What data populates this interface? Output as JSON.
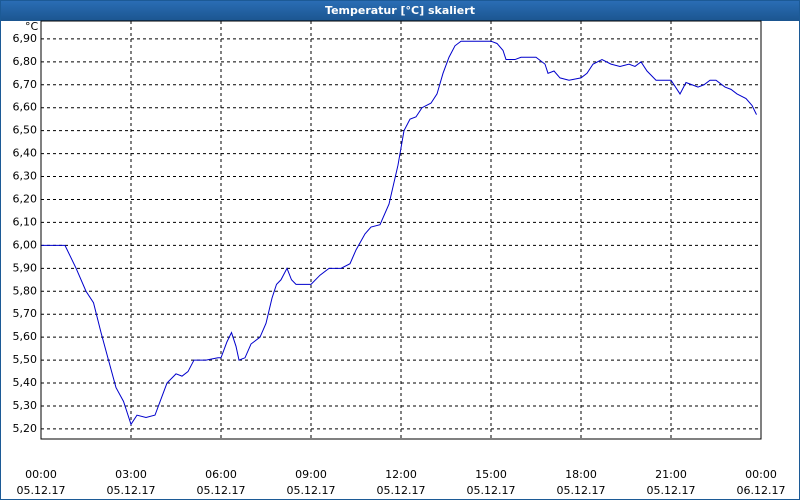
{
  "chart_data": {
    "type": "line",
    "title": "Temperatur [°C] skaliert",
    "y_label": "°C",
    "x": [
      0,
      0.5,
      0.8,
      1.17,
      1.5,
      1.75,
      2.0,
      2.25,
      2.5,
      2.75,
      2.9,
      3.0,
      3.2,
      3.5,
      3.8,
      4.0,
      4.2,
      4.5,
      4.7,
      4.9,
      5.1,
      5.5,
      5.9,
      6.0,
      6.2,
      6.35,
      6.5,
      6.6,
      6.8,
      7.0,
      7.3,
      7.5,
      7.7,
      7.85,
      8.0,
      8.2,
      8.35,
      8.5,
      9.0,
      9.3,
      9.6,
      10.0,
      10.3,
      10.5,
      10.8,
      11.0,
      11.3,
      11.6,
      11.9,
      12.1,
      12.3,
      12.5,
      12.7,
      13.0,
      13.2,
      13.4,
      13.6,
      13.8,
      14.0,
      14.5,
      15.0,
      15.2,
      15.4,
      15.5,
      15.8,
      16.0,
      16.5,
      16.8,
      16.9,
      17.1,
      17.3,
      17.6,
      18.0,
      18.2,
      18.4,
      18.7,
      19.0,
      19.3,
      19.6,
      19.8,
      20.0,
      20.2,
      20.5,
      21.0,
      21.1,
      21.3,
      21.5,
      21.7,
      21.9,
      22.1,
      22.3,
      22.5,
      22.8,
      23.0,
      23.2,
      23.5,
      23.7,
      23.85
    ],
    "series": [
      {
        "name": "Temperatur",
        "color": "#0000cc",
        "values": [
          6.0,
          6.0,
          6.0,
          5.9,
          5.8,
          5.75,
          5.62,
          5.5,
          5.38,
          5.32,
          5.26,
          5.22,
          5.26,
          5.25,
          5.26,
          5.33,
          5.4,
          5.44,
          5.43,
          5.45,
          5.5,
          5.5,
          5.51,
          5.51,
          5.58,
          5.62,
          5.56,
          5.5,
          5.51,
          5.57,
          5.6,
          5.66,
          5.77,
          5.83,
          5.85,
          5.9,
          5.85,
          5.83,
          5.83,
          5.87,
          5.9,
          5.9,
          5.92,
          5.98,
          6.05,
          6.08,
          6.09,
          6.18,
          6.35,
          6.5,
          6.55,
          6.56,
          6.6,
          6.62,
          6.66,
          6.75,
          6.82,
          6.87,
          6.89,
          6.89,
          6.89,
          6.88,
          6.85,
          6.81,
          6.81,
          6.82,
          6.82,
          6.79,
          6.75,
          6.76,
          6.73,
          6.72,
          6.73,
          6.75,
          6.79,
          6.81,
          6.79,
          6.78,
          6.79,
          6.78,
          6.8,
          6.76,
          6.72,
          6.72,
          6.7,
          6.66,
          6.71,
          6.7,
          6.69,
          6.7,
          6.72,
          6.72,
          6.69,
          6.68,
          6.66,
          6.64,
          6.61,
          6.57
        ]
      }
    ],
    "xlim": [
      0,
      24
    ],
    "xticks": [
      {
        "value": 0,
        "label": "00:00\n05.12.17"
      },
      {
        "value": 3,
        "label": "03:00\n05.12.17"
      },
      {
        "value": 6,
        "label": "06:00\n05.12.17"
      },
      {
        "value": 9,
        "label": "09:00\n05.12.17"
      },
      {
        "value": 12,
        "label": "12:00\n05.12.17"
      },
      {
        "value": 15,
        "label": "15:00\n05.12.17"
      },
      {
        "value": 18,
        "label": "18:00\n05.12.17"
      },
      {
        "value": 21,
        "label": "21:00\n05.12.17"
      },
      {
        "value": 24,
        "label": "00:00\n06.12.17"
      }
    ],
    "ylim": [
      5.156,
      6.978
    ],
    "yticks": [
      {
        "value": 5.2,
        "label": "5,20"
      },
      {
        "value": 5.3,
        "label": "5,30"
      },
      {
        "value": 5.4,
        "label": "5,40"
      },
      {
        "value": 5.5,
        "label": "5,50"
      },
      {
        "value": 5.6,
        "label": "5,60"
      },
      {
        "value": 5.7,
        "label": "5,70"
      },
      {
        "value": 5.8,
        "label": "5,80"
      },
      {
        "value": 5.9,
        "label": "5,90"
      },
      {
        "value": 6.0,
        "label": "6,00"
      },
      {
        "value": 6.1,
        "label": "6,10"
      },
      {
        "value": 6.2,
        "label": "6,20"
      },
      {
        "value": 6.3,
        "label": "6,30"
      },
      {
        "value": 6.4,
        "label": "6,40"
      },
      {
        "value": 6.5,
        "label": "6,50"
      },
      {
        "value": 6.6,
        "label": "6,60"
      },
      {
        "value": 6.7,
        "label": "6,70"
      },
      {
        "value": 6.8,
        "label": "6,80"
      },
      {
        "value": 6.9,
        "label": "6,90"
      }
    ],
    "grid": true
  }
}
